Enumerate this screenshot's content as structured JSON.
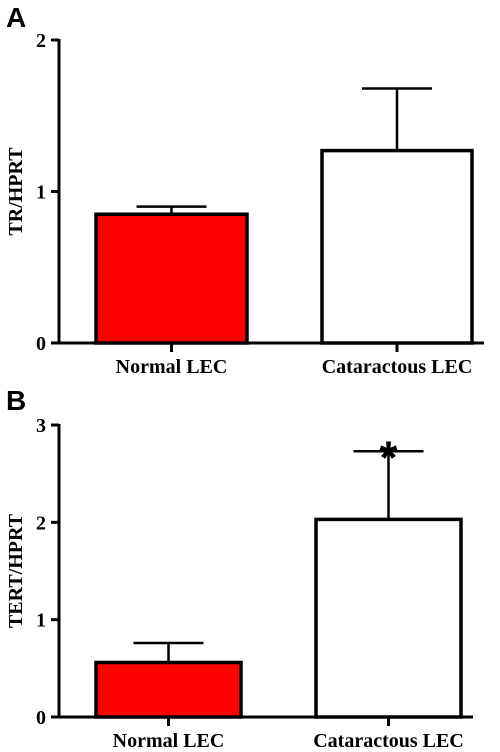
{
  "chart_data": [
    {
      "type": "bar",
      "panel": "A",
      "categories": [
        "Normal LEC",
        "Cataractous LEC"
      ],
      "values": [
        0.85,
        1.27
      ],
      "errors": [
        0.05,
        0.41
      ],
      "ylabel": "TR/HPRT",
      "ylim": [
        0,
        2
      ],
      "yticks": [
        0,
        1,
        2
      ],
      "colors": [
        "#ff0000",
        "#ffffff"
      ],
      "annotations": [
        "",
        ""
      ]
    },
    {
      "type": "bar",
      "panel": "B",
      "categories": [
        "Normal LEC",
        "Cataractous LEC"
      ],
      "values": [
        0.56,
        2.03
      ],
      "errors": [
        0.2,
        0.7
      ],
      "ylabel": "TERT/HPRT",
      "ylim": [
        0,
        3
      ],
      "yticks": [
        0,
        1,
        2,
        3
      ],
      "colors": [
        "#ff0000",
        "#ffffff"
      ],
      "annotations": [
        "",
        "*"
      ]
    }
  ]
}
